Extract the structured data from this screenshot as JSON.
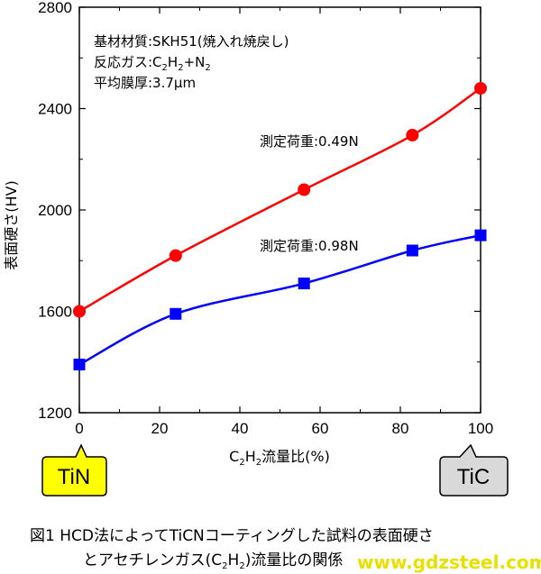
{
  "chart_data": {
    "type": "line",
    "xlabel": {
      "prefix": "C",
      "s1": "2",
      "mid": "H",
      "s2": "2",
      "suffix": "流量比(%)"
    },
    "ylabel": "表面硬さ(HV)",
    "xlim": [
      0,
      100
    ],
    "ylim": [
      1200,
      2800
    ],
    "x_ticks": [
      0,
      20,
      40,
      60,
      80,
      100
    ],
    "y_ticks": [
      1200,
      1600,
      2000,
      2400,
      2800
    ],
    "grid": false,
    "series": [
      {
        "name": "測定荷重:0.49N",
        "color": "#ff0000",
        "marker": "circle",
        "x": [
          0,
          24,
          56,
          83,
          100
        ],
        "y": [
          1600,
          1820,
          2080,
          2295,
          2480
        ]
      },
      {
        "name": "測定荷重:0.98N",
        "color": "#0000ff",
        "marker": "square",
        "x": [
          0,
          24,
          56,
          83,
          100
        ],
        "y": [
          1390,
          1590,
          1710,
          1840,
          1900
        ]
      }
    ],
    "annotations": {
      "line1": "基材材質:SKH51(焼入れ焼戻し)",
      "line2": {
        "prefix": "反応ガス:C",
        "s1": "2",
        "mid": "H",
        "s2": "2",
        "suffix": "+N",
        "s3": "2"
      },
      "line3": "平均膜厚:3.7μm"
    },
    "badges": {
      "left": {
        "label": "TiN",
        "color": "#ffff00"
      },
      "right": {
        "label": "TiC",
        "color": "#d9d9d9"
      }
    }
  },
  "caption": {
    "line1": "図1 HCD法によってTiCNコーティングした試料の表面硬さ",
    "line2_prefix": "とアセチレンガス(C",
    "s1": "2",
    "mid": "H",
    "s2": "2",
    "line2_suffix": ")流量比の関係"
  },
  "watermark": "www.gdzsteel.com"
}
